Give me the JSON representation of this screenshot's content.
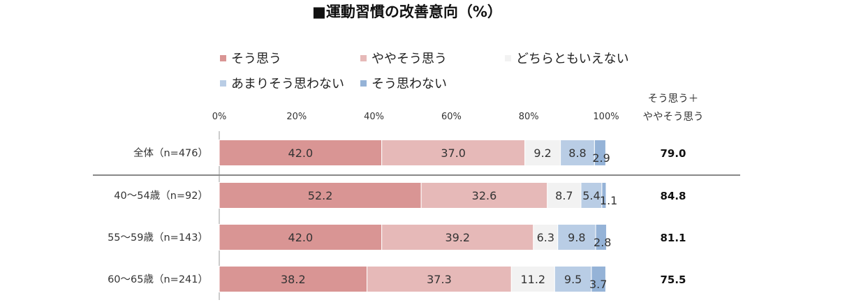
{
  "chart_data": {
    "type": "bar",
    "orientation": "horizontal",
    "stacked": true,
    "title": "■運動習慣の改善意向（%）",
    "xlim": [
      0,
      100
    ],
    "x_ticks": [
      "0%",
      "20%",
      "40%",
      "60%",
      "80%",
      "100%"
    ],
    "grid": false,
    "legend_position": "top",
    "categories": [
      "全体（n=476）",
      "40～54歳（n=92）",
      "55～59歳（n=143）",
      "60～65歳（n=241）"
    ],
    "series": [
      {
        "name": "そう思う",
        "color": "#d99594",
        "values": [
          42.0,
          52.2,
          42.0,
          38.2
        ]
      },
      {
        "name": "ややそう思う",
        "color": "#e6b9b8",
        "values": [
          37.0,
          32.6,
          39.2,
          37.3
        ]
      },
      {
        "name": "どちらともいえない",
        "color": "#f2f2f2",
        "values": [
          9.2,
          8.7,
          6.3,
          11.2
        ]
      },
      {
        "name": "あまりそう思わない",
        "color": "#b9cde5",
        "values": [
          8.8,
          5.4,
          9.8,
          9.5
        ]
      },
      {
        "name": "そう思わない",
        "color": "#95b3d7",
        "values": [
          2.9,
          1.1,
          2.8,
          3.7
        ]
      }
    ],
    "summary_header": [
      "そう思う＋",
      "ややそう思う"
    ],
    "summary_values": [
      "79.0",
      "84.8",
      "81.1",
      "75.5"
    ]
  }
}
